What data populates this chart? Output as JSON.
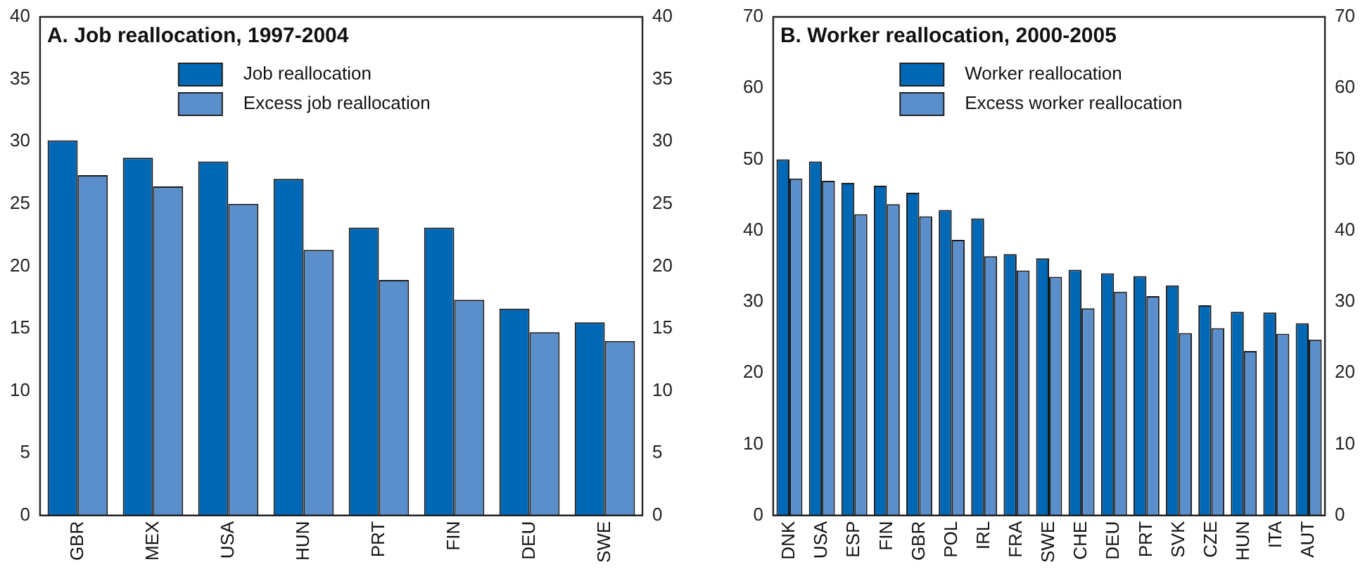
{
  "chart_data": [
    {
      "type": "bar",
      "title": "A. Job reallocation, 1997-2004",
      "categories": [
        "GBR",
        "MEX",
        "USA",
        "HUN",
        "PRT",
        "FIN",
        "DEU",
        "SWE"
      ],
      "series": [
        {
          "name": "Job reallocation",
          "color": "#0068b4",
          "values": [
            30.1,
            28.7,
            28.4,
            27.0,
            23.1,
            23.1,
            16.6,
            15.5
          ]
        },
        {
          "name": "Excess job reallocation",
          "color": "#5b8fcc",
          "values": [
            27.3,
            26.4,
            25.0,
            21.3,
            18.9,
            17.3,
            14.7,
            14.0
          ]
        }
      ],
      "ylim": [
        0,
        40
      ],
      "yticks": [
        0,
        5,
        10,
        15,
        20,
        25,
        30,
        35,
        40
      ],
      "y2lim": [
        0,
        40
      ],
      "y2ticks": [
        0,
        5,
        10,
        15,
        20,
        25,
        30,
        35,
        40
      ],
      "grid": false,
      "legend": "top"
    },
    {
      "type": "bar",
      "title": "B. Worker reallocation, 2000-2005",
      "categories": [
        "DNK",
        "USA",
        "ESP",
        "FIN",
        "GBR",
        "POL",
        "IRL",
        "FRA",
        "SWE",
        "CHE",
        "DEU",
        "PRT",
        "SVK",
        "CZE",
        "HUN",
        "ITA",
        "AUT"
      ],
      "series": [
        {
          "name": "Worker reallocation",
          "color": "#0068b4",
          "values": [
            50.0,
            49.7,
            46.7,
            46.3,
            45.3,
            42.9,
            41.7,
            36.7,
            36.1,
            34.5,
            34.0,
            33.6,
            32.3,
            29.5,
            28.6,
            28.5,
            27.0
          ]
        },
        {
          "name": "Excess worker reallocation",
          "color": "#5b8fcc",
          "values": [
            47.3,
            47.0,
            42.3,
            43.7,
            42.0,
            38.7,
            36.4,
            34.4,
            33.5,
            29.1,
            31.4,
            30.8,
            25.6,
            26.3,
            23.1,
            25.5,
            24.7
          ]
        }
      ],
      "ylim": [
        0,
        70
      ],
      "yticks": [
        0,
        10,
        20,
        30,
        40,
        50,
        60,
        70
      ],
      "y2lim": [
        0,
        70
      ],
      "y2ticks": [
        0,
        10,
        20,
        30,
        40,
        50,
        60,
        70
      ],
      "grid": false,
      "legend": "top"
    }
  ]
}
